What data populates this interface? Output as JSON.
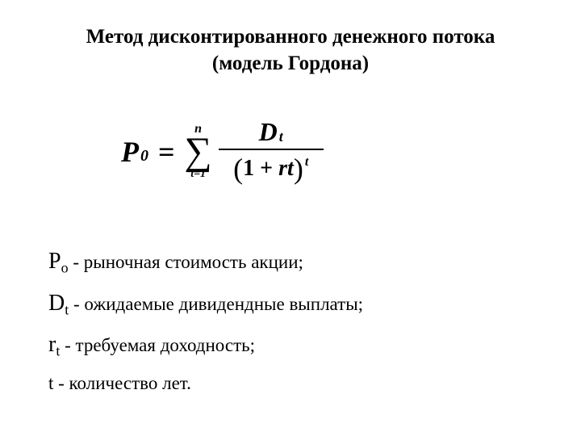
{
  "title_line1": "Метод дисконтированного денежного потока",
  "title_line2": "(модель Гордона)",
  "formula": {
    "P": "P",
    "P_sub": "0",
    "equals": "=",
    "sigma_top": "n",
    "sigma": "∑",
    "sigma_bottom": "t=1",
    "num_D": "D",
    "num_sub": "t",
    "den_lparen": "(",
    "den_one": "1",
    "den_plus": "+",
    "den_r": "rt",
    "den_rparen": ")",
    "den_sup": "t"
  },
  "defs": {
    "p_var": "P",
    "p_sub": "o",
    "p_text": " - рыночная стоимость акции;",
    "d_var": "D",
    "d_sub": "t",
    "d_text": " - ожидаемые дивидендные выплаты;",
    "r_var": "r",
    "r_sub": "t",
    "r_text": " - требуемая доходность;",
    "t_text": "t - количество лет."
  }
}
